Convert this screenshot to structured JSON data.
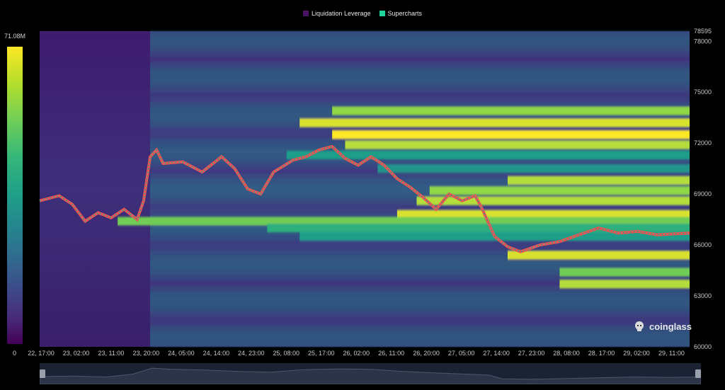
{
  "legend": {
    "items": [
      {
        "label": "Liquidation Leverage",
        "color": "#4a1464"
      },
      {
        "label": "Supercharts",
        "color": "#1fd29a"
      }
    ]
  },
  "colorbar": {
    "max_label": "71.08M",
    "min_label": "0"
  },
  "watermark": {
    "text": "coinglass"
  },
  "colors": {
    "low": "#440154",
    "high": "#fde725",
    "candle_up": "#26a69a",
    "candle_down": "#ef5350",
    "navigator_fill": "#2c3548"
  },
  "chart_data": {
    "type": "heatmap",
    "title": "",
    "y_axis": {
      "min": 60000,
      "max": 78595,
      "ticks": [
        "78595",
        "78000",
        "75000",
        "72000",
        "69000",
        "66000",
        "63000",
        "60000"
      ]
    },
    "x_axis": {
      "ticks": [
        "22, 17:00",
        "23, 02:00",
        "23, 11:00",
        "23, 20:00",
        "24, 05:00",
        "24, 14:00",
        "24, 23:00",
        "25, 08:00",
        "25, 17:00",
        "26, 02:00",
        "26, 11:00",
        "26, 20:00",
        "27, 05:00",
        "27, 14:00",
        "27, 23:00",
        "28, 08:00",
        "28, 17:00",
        "29, 02:00",
        "29, 11:00"
      ]
    },
    "colorscale": {
      "min": 0,
      "max": "71.08M"
    },
    "liquidation_bands": [
      {
        "price": 73900,
        "start": 0.45,
        "intensity": 0.85
      },
      {
        "price": 73200,
        "start": 0.4,
        "intensity": 0.95
      },
      {
        "price": 72500,
        "start": 0.45,
        "intensity": 1.0
      },
      {
        "price": 71900,
        "start": 0.47,
        "intensity": 0.9
      },
      {
        "price": 71300,
        "start": 0.38,
        "intensity": 0.55
      },
      {
        "price": 70500,
        "start": 0.52,
        "intensity": 0.5
      },
      {
        "price": 69800,
        "start": 0.72,
        "intensity": 0.9
      },
      {
        "price": 69200,
        "start": 0.6,
        "intensity": 0.85
      },
      {
        "price": 68600,
        "start": 0.58,
        "intensity": 0.9
      },
      {
        "price": 67800,
        "start": 0.55,
        "intensity": 0.95
      },
      {
        "price": 67400,
        "start": 0.12,
        "intensity": 0.8
      },
      {
        "price": 67000,
        "start": 0.35,
        "intensity": 0.65
      },
      {
        "price": 66500,
        "start": 0.4,
        "intensity": 0.55
      },
      {
        "price": 65400,
        "start": 0.72,
        "intensity": 0.95
      },
      {
        "price": 64400,
        "start": 0.8,
        "intensity": 0.8
      },
      {
        "price": 63700,
        "start": 0.8,
        "intensity": 0.9
      }
    ],
    "price_series": {
      "name": "",
      "points": [
        [
          0.0,
          68600
        ],
        [
          0.03,
          68900
        ],
        [
          0.05,
          68400
        ],
        [
          0.07,
          67400
        ],
        [
          0.09,
          67900
        ],
        [
          0.11,
          67600
        ],
        [
          0.13,
          68100
        ],
        [
          0.15,
          67500
        ],
        [
          0.16,
          68600
        ],
        [
          0.17,
          71200
        ],
        [
          0.18,
          71600
        ],
        [
          0.19,
          70800
        ],
        [
          0.22,
          70900
        ],
        [
          0.25,
          70300
        ],
        [
          0.28,
          71200
        ],
        [
          0.3,
          70500
        ],
        [
          0.32,
          69300
        ],
        [
          0.34,
          69000
        ],
        [
          0.36,
          70300
        ],
        [
          0.39,
          71000
        ],
        [
          0.41,
          71200
        ],
        [
          0.43,
          71600
        ],
        [
          0.45,
          71800
        ],
        [
          0.47,
          71100
        ],
        [
          0.49,
          70700
        ],
        [
          0.51,
          71200
        ],
        [
          0.53,
          70700
        ],
        [
          0.55,
          69900
        ],
        [
          0.57,
          69400
        ],
        [
          0.59,
          68800
        ],
        [
          0.61,
          68100
        ],
        [
          0.63,
          69000
        ],
        [
          0.65,
          68600
        ],
        [
          0.67,
          68900
        ],
        [
          0.68,
          68200
        ],
        [
          0.7,
          66500
        ],
        [
          0.72,
          65900
        ],
        [
          0.74,
          65600
        ],
        [
          0.77,
          66000
        ],
        [
          0.8,
          66200
        ],
        [
          0.83,
          66600
        ],
        [
          0.86,
          67000
        ],
        [
          0.89,
          66700
        ],
        [
          0.92,
          66800
        ],
        [
          0.95,
          66600
        ],
        [
          1.0,
          66700
        ]
      ]
    },
    "navigator_series": [
      [
        0.0,
        0.42
      ],
      [
        0.05,
        0.45
      ],
      [
        0.1,
        0.4
      ],
      [
        0.14,
        0.55
      ],
      [
        0.17,
        0.88
      ],
      [
        0.2,
        0.82
      ],
      [
        0.25,
        0.78
      ],
      [
        0.3,
        0.7
      ],
      [
        0.35,
        0.66
      ],
      [
        0.4,
        0.8
      ],
      [
        0.45,
        0.84
      ],
      [
        0.5,
        0.82
      ],
      [
        0.55,
        0.7
      ],
      [
        0.6,
        0.62
      ],
      [
        0.65,
        0.55
      ],
      [
        0.68,
        0.5
      ],
      [
        0.7,
        0.3
      ],
      [
        0.75,
        0.28
      ],
      [
        0.8,
        0.32
      ],
      [
        0.85,
        0.36
      ],
      [
        0.9,
        0.4
      ],
      [
        0.95,
        0.38
      ],
      [
        1.0,
        0.4
      ]
    ]
  }
}
